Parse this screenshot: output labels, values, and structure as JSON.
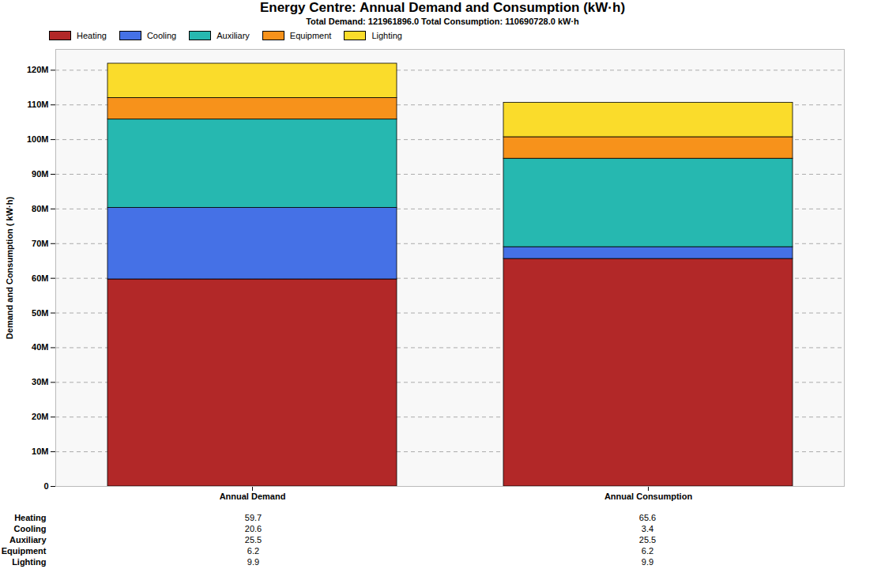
{
  "chart_data": {
    "type": "bar",
    "stacked": true,
    "title": "Energy Centre: Annual Demand and Consumption (kW·h)",
    "subtitle": "Total Demand: 121961896.0  Total Consumption: 110690728.0 kW·h",
    "ylabel": "Demand and Consumption ( kW·h)",
    "categories": [
      "Annual Demand",
      "Annual Consumption"
    ],
    "series": [
      {
        "name": "Heating",
        "color": "#b22828",
        "values": [
          59.7,
          65.6
        ]
      },
      {
        "name": "Cooling",
        "color": "#4571e6",
        "values": [
          20.6,
          3.4
        ]
      },
      {
        "name": "Auxiliary",
        "color": "#26b8b0",
        "values": [
          25.5,
          25.5
        ]
      },
      {
        "name": "Equipment",
        "color": "#f7921b",
        "values": [
          6.2,
          6.2
        ]
      },
      {
        "name": "Lighting",
        "color": "#fadc2b",
        "values": [
          9.9,
          9.9
        ]
      }
    ],
    "ylim": [
      0,
      126
    ],
    "yticks": [
      0,
      {
        "value": 10,
        "label": "10M"
      },
      {
        "value": 20,
        "label": "20M"
      },
      {
        "value": 30,
        "label": "30M"
      },
      {
        "value": 40,
        "label": "40M"
      },
      {
        "value": 50,
        "label": "50M"
      },
      {
        "value": 60,
        "label": "60M"
      },
      {
        "value": 70,
        "label": "70M"
      },
      {
        "value": 80,
        "label": "80M"
      },
      {
        "value": 90,
        "label": "90M"
      },
      {
        "value": 100,
        "label": "100M"
      },
      {
        "value": 110,
        "label": "110M"
      },
      {
        "value": 120,
        "label": "120M"
      }
    ],
    "grid": true,
    "legend": "top-left"
  }
}
